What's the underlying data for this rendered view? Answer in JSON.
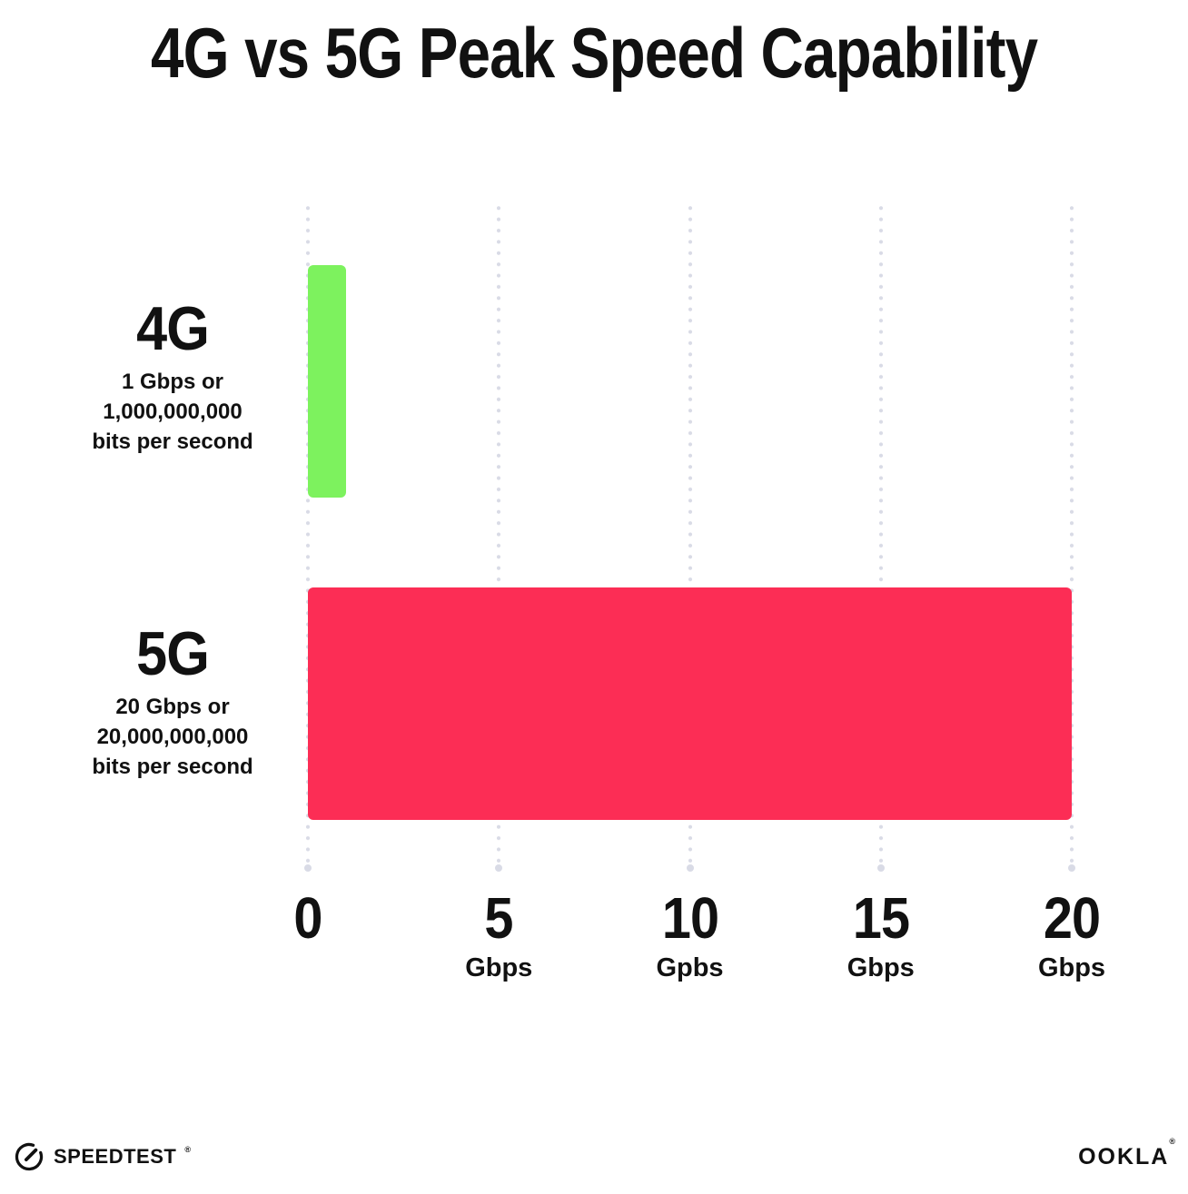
{
  "title": "4G vs 5G Peak Speed Capability",
  "chart_data": {
    "type": "bar",
    "orientation": "horizontal",
    "title": "4G vs 5G Peak Speed Capability",
    "categories": [
      "4G",
      "5G"
    ],
    "values": [
      1,
      20
    ],
    "value_unit": "Gbps",
    "xlim": [
      0,
      20
    ],
    "grid": "dotted-vertical",
    "legend": "none",
    "rows": [
      {
        "name": "4G",
        "value": 1,
        "color": "#7df25e",
        "desc_lines": [
          "1 Gbps or",
          "1,000,000,000",
          "bits per second"
        ]
      },
      {
        "name": "5G",
        "value": 20,
        "color": "#fc2d55",
        "desc_lines": [
          "20 Gbps or",
          "20,000,000,000",
          "bits per second"
        ]
      }
    ],
    "ticks": [
      {
        "value": 0,
        "label": "0",
        "unit": ""
      },
      {
        "value": 5,
        "label": "5",
        "unit": "Gbps"
      },
      {
        "value": 10,
        "label": "10",
        "unit": "Gpbs"
      },
      {
        "value": 15,
        "label": "15",
        "unit": "Gbps"
      },
      {
        "value": 20,
        "label": "20",
        "unit": "Gbps"
      }
    ]
  },
  "footer": {
    "speedtest_label": "SPEEDTEST",
    "speedtest_reg": "®",
    "ookla_label": "OOKLA",
    "ookla_reg": "®"
  },
  "colors": {
    "background": "#ffffff",
    "text": "#111111",
    "bar_4g": "#7df25e",
    "bar_5g": "#fc2d55",
    "grid_dot": "#d9dbe6"
  }
}
